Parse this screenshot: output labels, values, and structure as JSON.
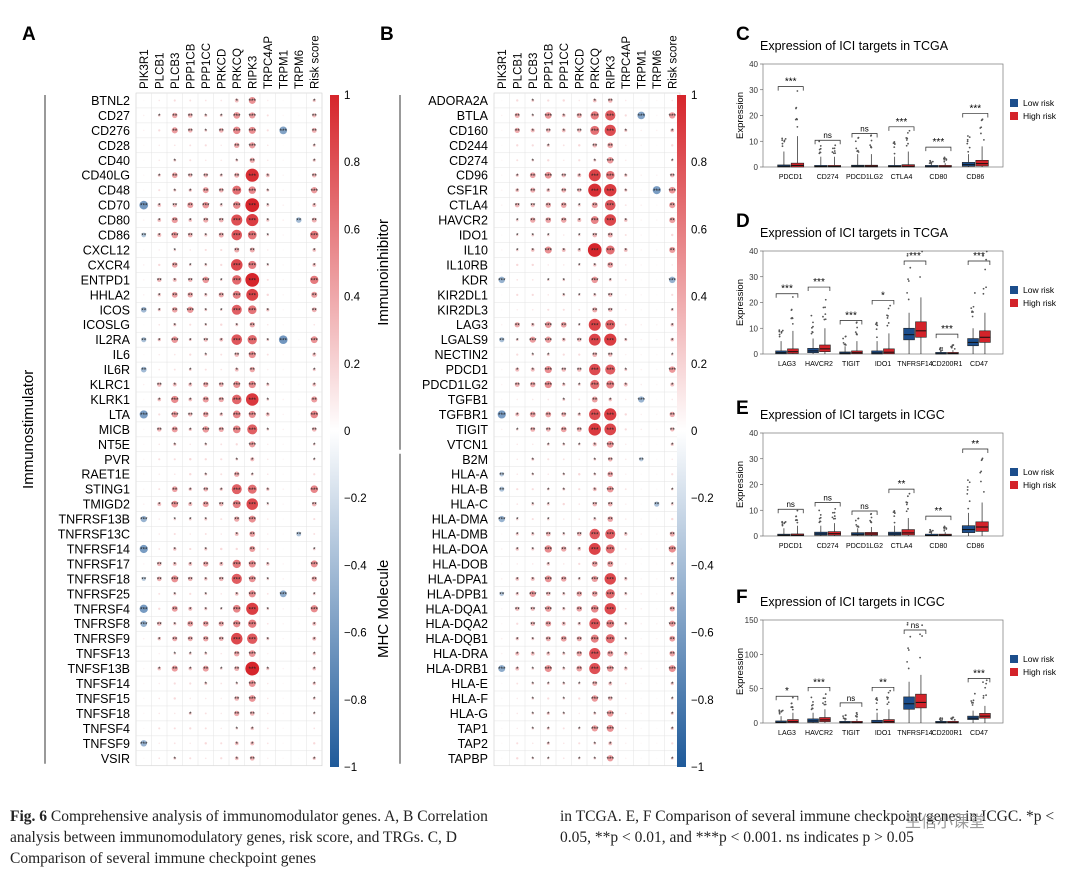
{
  "figure": {
    "panel_labels": [
      "A",
      "B",
      "C",
      "D",
      "E",
      "F"
    ],
    "colorbar_ticks": [
      "1",
      "0.8",
      "0.6",
      "0.4",
      "0.2",
      "0",
      "−0.2",
      "−0.4",
      "−0.6",
      "−0.8",
      "−1"
    ],
    "colors": {
      "positive": "#d6252b",
      "negative": "#1f5a9a",
      "low_risk": "#1c4e8c",
      "high_risk": "#d3232a"
    },
    "watermark": "生信小课堂"
  },
  "caption": {
    "fig_label": "Fig. 6",
    "left_text": " Comprehensive analysis of immunomodulator genes. A, B Correlation analysis between immunomodulatory genes, risk score, and TRGs. C, D Comparison of several immune checkpoint genes",
    "right_text": "in TCGA. E, F Comparison of several immune checkpoint genes in ICGC. *p < 0.05, **p < 0.01, and ***p < 0.001. ns indicates p > 0.05"
  },
  "chart_data": [
    {
      "panel": "A",
      "type": "heatmap",
      "group_label": "Immunostimulator",
      "columns": [
        "PIK3R1",
        "PLCB1",
        "PLCB3",
        "PPP1CB",
        "PPP1CC",
        "PRKCD",
        "PRKCQ",
        "RIPK3",
        "TRPC4AP",
        "TRPM1",
        "TRPM6",
        "Risk score"
      ],
      "rows": [
        "BTNL2",
        "CD27",
        "CD276",
        "CD28",
        "CD40",
        "CD40LG",
        "CD48",
        "CD70",
        "CD80",
        "CD86",
        "CXCL12",
        "CXCR4",
        "ENTPD1",
        "HHLA2",
        "ICOS",
        "ICOSLG",
        "IL2RA",
        "IL6",
        "IL6R",
        "KLRC1",
        "KLRK1",
        "LTA",
        "MICB",
        "NT5E",
        "PVR",
        "RAET1E",
        "STING1",
        "TMIGD2",
        "TNFRSF13B",
        "TNFRSF13C",
        "TNFRSF14",
        "TNFRSF17",
        "TNFRSF18",
        "TNFRSF25",
        "TNFRSF4",
        "TNFRSF8",
        "TNFRSF9",
        "TNFSF13",
        "TNFSF13B",
        "TNFSF14",
        "TNFSF15",
        "TNFSF18",
        "TNFSF4",
        "TNFSF9",
        "VSIR"
      ],
      "column_profile": [
        0.05,
        0.22,
        0.35,
        0.3,
        0.32,
        0.25,
        0.55,
        0.7,
        0.2,
        0.05,
        0.02,
        0.4
      ],
      "strong_rows": [
        "CD27",
        "CD276",
        "CD40LG",
        "CD48",
        "CD70",
        "CD80",
        "CD86",
        "CXCR4",
        "ENTPD1",
        "HHLA2",
        "ICOS",
        "IL2RA",
        "KLRC1",
        "KLRK1",
        "LTA",
        "MICB",
        "STING1",
        "TMIGD2",
        "TNFRSF17",
        "TNFRSF18",
        "TNFRSF4",
        "TNFRSF8",
        "TNFRSF9",
        "TNFSF13B"
      ],
      "negative_cells": [
        [
          7,
          0
        ],
        [
          9,
          0
        ],
        [
          14,
          0
        ],
        [
          16,
          0
        ],
        [
          18,
          0
        ],
        [
          21,
          0
        ],
        [
          28,
          0
        ],
        [
          30,
          0
        ],
        [
          32,
          0
        ],
        [
          34,
          0
        ],
        [
          35,
          0
        ],
        [
          43,
          0
        ],
        [
          2,
          9
        ],
        [
          8,
          10
        ],
        [
          16,
          9
        ],
        [
          29,
          10
        ],
        [
          33,
          9
        ]
      ],
      "colorbar_range": [
        -1,
        1
      ]
    },
    {
      "panel": "B",
      "type": "heatmap",
      "group_labels": [
        "Immunoinhibitor",
        "MHC Molecule"
      ],
      "columns": [
        "PIK3R1",
        "PLCB1",
        "PLCB3",
        "PPP1CB",
        "PPP1CC",
        "PRKCD",
        "PRKCQ",
        "RIPK3",
        "TRPC4AP",
        "TRPM1",
        "TRPM6",
        "Risk score"
      ],
      "rows": [
        "ADORA2A",
        "BTLA",
        "CD160",
        "CD244",
        "CD274",
        "CD96",
        "CSF1R",
        "CTLA4",
        "HAVCR2",
        "IDO1",
        "IL10",
        "IL10RB",
        "KDR",
        "KIR2DL1",
        "KIR2DL3",
        "LAG3",
        "LGALS9",
        "NECTIN2",
        "PDCD1",
        "PDCD1LG2",
        "TGFB1",
        "TGFBR1",
        "TIGIT",
        "VTCN1",
        "B2M",
        "HLA-A",
        "HLA-B",
        "HLA-C",
        "HLA-DMA",
        "HLA-DMB",
        "HLA-DOA",
        "HLA-DOB",
        "HLA-DPA1",
        "HLA-DPB1",
        "HLA-DQA1",
        "HLA-DQA2",
        "HLA-DQB1",
        "HLA-DRA",
        "HLA-DRB1",
        "HLA-E",
        "HLA-F",
        "HLA-G",
        "TAP1",
        "TAP2",
        "TAPBP"
      ],
      "immunoinhibitor_row_count": 24,
      "column_profile": [
        0.05,
        0.25,
        0.3,
        0.35,
        0.3,
        0.28,
        0.65,
        0.7,
        0.2,
        0.06,
        0.04,
        0.35
      ],
      "strong_rows": [
        "BTLA",
        "CD160",
        "CD96",
        "CSF1R",
        "CTLA4",
        "HAVCR2",
        "IL10",
        "LAG3",
        "LGALS9",
        "PDCD1",
        "PDCD1LG2",
        "TGFBR1",
        "TIGIT",
        "HLA-DMB",
        "HLA-DOA",
        "HLA-DPA1",
        "HLA-DPB1",
        "HLA-DQA1",
        "HLA-DQA2",
        "HLA-DQB1",
        "HLA-DRA",
        "HLA-DRB1"
      ],
      "negative_cells": [
        [
          12,
          0
        ],
        [
          16,
          0
        ],
        [
          21,
          0
        ],
        [
          25,
          0
        ],
        [
          26,
          0
        ],
        [
          28,
          0
        ],
        [
          33,
          0
        ],
        [
          38,
          0
        ],
        [
          1,
          9
        ],
        [
          6,
          10
        ],
        [
          12,
          11
        ],
        [
          20,
          9
        ],
        [
          24,
          9
        ],
        [
          27,
          10
        ]
      ],
      "colorbar_range": [
        -1,
        1
      ]
    },
    {
      "panel": "C",
      "type": "box",
      "title": "Expression of ICI targets in TCGA",
      "ylabel": "Expression",
      "ylim": [
        0,
        40
      ],
      "yticks": [
        0,
        10,
        20,
        30,
        40
      ],
      "legend": [
        "Low risk",
        "High risk"
      ],
      "legend_position": "right",
      "categories": [
        "PDCD1",
        "CD274",
        "PDCD1LG2",
        "CTLA4",
        "CD80",
        "CD86"
      ],
      "significance": [
        "***",
        "ns",
        "ns",
        "***",
        "***",
        "***"
      ],
      "series": [
        {
          "name": "Low risk",
          "median": [
            0.3,
            0.2,
            0.3,
            0.2,
            0.1,
            0.9
          ],
          "q1": [
            0,
            0,
            0,
            0,
            0,
            0.3
          ],
          "q3": [
            0.8,
            0.5,
            0.7,
            0.5,
            0.2,
            1.8
          ],
          "whisker_high": [
            6,
            4,
            5,
            4,
            1,
            5
          ]
        },
        {
          "name": "High risk",
          "median": [
            0.6,
            0.2,
            0.3,
            0.3,
            0.1,
            1.3
          ],
          "q1": [
            0,
            0,
            0,
            0,
            0,
            0.4
          ],
          "q3": [
            1.5,
            0.5,
            0.7,
            0.9,
            0.3,
            2.6
          ],
          "whisker_high": [
            12,
            4,
            5,
            6,
            1.5,
            8
          ]
        }
      ]
    },
    {
      "panel": "D",
      "type": "box",
      "title": "Expression of ICI targets in TCGA",
      "ylabel": "Expression",
      "ylim": [
        0,
        40
      ],
      "yticks": [
        0,
        10,
        20,
        30,
        40
      ],
      "legend": [
        "Low risk",
        "High risk"
      ],
      "legend_position": "right",
      "categories": [
        "LAG3",
        "HAVCR2",
        "TIGIT",
        "IDO1",
        "TNFRSF14",
        "CD200R1",
        "CD47"
      ],
      "significance": [
        "***",
        "***",
        "***",
        "*",
        "***",
        "***",
        "***"
      ],
      "series": [
        {
          "name": "Low risk",
          "median": [
            0.5,
            1.2,
            0.3,
            0.4,
            7.5,
            0.1,
            4.5
          ],
          "q1": [
            0.1,
            0.5,
            0,
            0,
            5.5,
            0,
            3.2
          ],
          "q3": [
            1.2,
            2.2,
            0.8,
            1.2,
            10,
            0.3,
            6
          ],
          "whisker_high": [
            5,
            6,
            3,
            5,
            16,
            1,
            10
          ]
        },
        {
          "name": "High risk",
          "median": [
            0.9,
            2.0,
            0.5,
            0.7,
            9,
            0.2,
            6.5
          ],
          "q1": [
            0.2,
            0.9,
            0.1,
            0.1,
            6.5,
            0,
            4.5
          ],
          "q3": [
            2.0,
            3.5,
            1.2,
            2.0,
            12.5,
            0.5,
            9
          ],
          "whisker_high": [
            9,
            10,
            5,
            8,
            22,
            1.5,
            16
          ]
        }
      ]
    },
    {
      "panel": "E",
      "type": "box",
      "title": "Expression of ICI targets in ICGC",
      "ylabel": "Expression",
      "ylim": [
        0,
        40
      ],
      "yticks": [
        0,
        10,
        20,
        30,
        40
      ],
      "legend": [
        "Low risk",
        "High risk"
      ],
      "legend_position": "right",
      "categories": [
        "PDCD1",
        "CD274",
        "PDCD1LG2",
        "CTLA4",
        "CD80",
        "CD86"
      ],
      "significance": [
        "ns",
        "ns",
        "ns",
        "**",
        "**",
        "**"
      ],
      "series": [
        {
          "name": "Low risk",
          "median": [
            0.3,
            0.8,
            0.7,
            0.8,
            0.2,
            2.5
          ],
          "q1": [
            0.1,
            0.3,
            0.3,
            0.3,
            0.1,
            1.3
          ],
          "q3": [
            0.7,
            1.5,
            1.3,
            1.5,
            0.4,
            4
          ],
          "whisker_high": [
            3,
            4,
            3,
            4,
            1,
            9
          ]
        },
        {
          "name": "High risk",
          "median": [
            0.3,
            0.9,
            0.8,
            1.2,
            0.3,
            3.5
          ],
          "q1": [
            0.1,
            0.3,
            0.3,
            0.4,
            0.1,
            1.8
          ],
          "q3": [
            0.8,
            1.7,
            1.4,
            2.5,
            0.6,
            5.5
          ],
          "whisker_high": [
            4,
            5,
            3.5,
            7,
            1.5,
            13
          ]
        }
      ]
    },
    {
      "panel": "F",
      "type": "box",
      "title": "Expression of ICI targets in ICGC",
      "ylabel": "Expression",
      "ylim": [
        0,
        150
      ],
      "yticks": [
        0,
        50,
        100,
        150
      ],
      "legend": [
        "Low risk",
        "High risk"
      ],
      "legend_position": "right",
      "categories": [
        "LAG3",
        "HAVCR2",
        "TIGIT",
        "IDO1",
        "TNFRSF14",
        "CD200R1",
        "CD47"
      ],
      "significance": [
        "*",
        "***",
        "ns",
        "**",
        "ns",
        "",
        "***"
      ],
      "series": [
        {
          "name": "Low risk",
          "median": [
            1,
            3,
            0.5,
            1,
            28,
            0.5,
            7
          ],
          "q1": [
            0.3,
            1,
            0.1,
            0.2,
            20,
            0.1,
            5
          ],
          "q3": [
            3,
            6,
            1.5,
            4,
            38,
            1,
            10
          ],
          "whisker_high": [
            10,
            15,
            5,
            15,
            60,
            3,
            18
          ]
        },
        {
          "name": "High risk",
          "median": [
            2,
            4.5,
            0.6,
            2,
            30,
            0.6,
            10
          ],
          "q1": [
            0.5,
            2,
            0.1,
            0.4,
            22,
            0.1,
            7
          ],
          "q3": [
            5,
            8,
            2,
            5,
            42,
            1.2,
            14
          ],
          "whisker_high": [
            15,
            20,
            6,
            20,
            70,
            3.5,
            25
          ]
        }
      ]
    }
  ]
}
